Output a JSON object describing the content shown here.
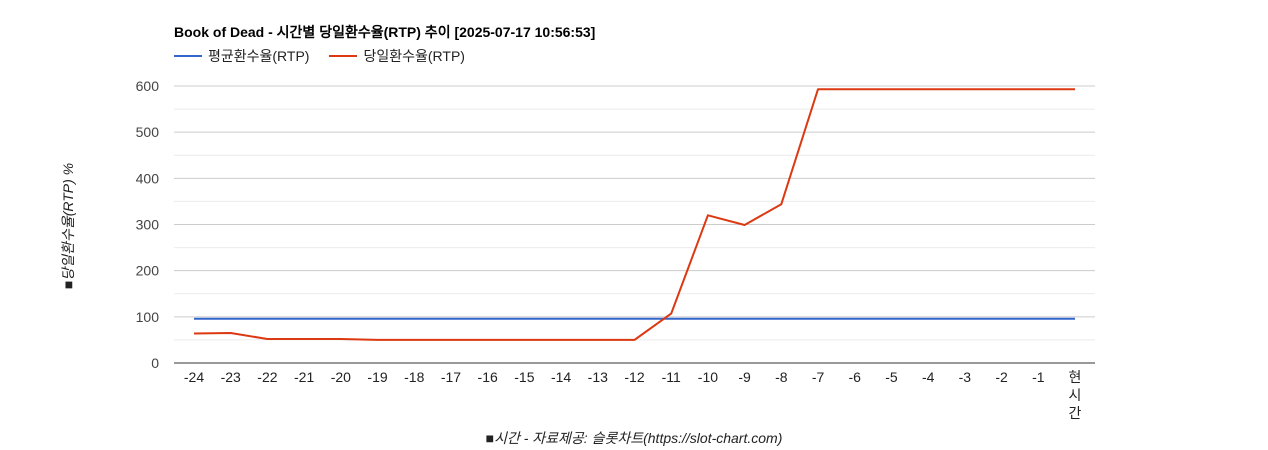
{
  "colors": {
    "avg": "#3366cc",
    "daily": "#dc3912",
    "grid": "#cccccc",
    "minor_grid": "#ebebeb",
    "axis": "#333333"
  },
  "chart_data": {
    "type": "line",
    "title": "Book of Dead - 시간별 당일환수율(RTP) 추이 [2025-07-17 10:56:53]",
    "xlabel": "■시간 - 자료제공: 슬롯차트(https://slot-chart.com)",
    "ylabel": "■당일환수율(RTP) %",
    "categories": [
      "-24",
      "-23",
      "-22",
      "-21",
      "-20",
      "-19",
      "-18",
      "-17",
      "-16",
      "-15",
      "-14",
      "-13",
      "-12",
      "-11",
      "-10",
      "-9",
      "-8",
      "-7",
      "-6",
      "-5",
      "-4",
      "-3",
      "-2",
      "-1",
      "현시간"
    ],
    "ylim": [
      0,
      600
    ],
    "yticks": [
      0,
      100,
      200,
      300,
      400,
      500,
      600
    ],
    "grid": true,
    "legend_position": "top-left",
    "series": [
      {
        "name": "평균환수율(RTP)",
        "color": "#3366cc",
        "values": [
          96,
          96,
          96,
          96,
          96,
          96,
          96,
          96,
          96,
          96,
          96,
          96,
          96,
          96,
          96,
          96,
          96,
          96,
          96,
          96,
          96,
          96,
          96,
          96,
          96
        ]
      },
      {
        "name": "당일환수율(RTP)",
        "color": "#dc3912",
        "values": [
          64,
          65,
          52,
          52,
          52,
          50,
          50,
          50,
          50,
          50,
          50,
          50,
          50,
          107,
          320,
          299,
          344,
          593,
          593,
          593,
          593,
          593,
          593,
          593,
          593
        ]
      }
    ]
  }
}
